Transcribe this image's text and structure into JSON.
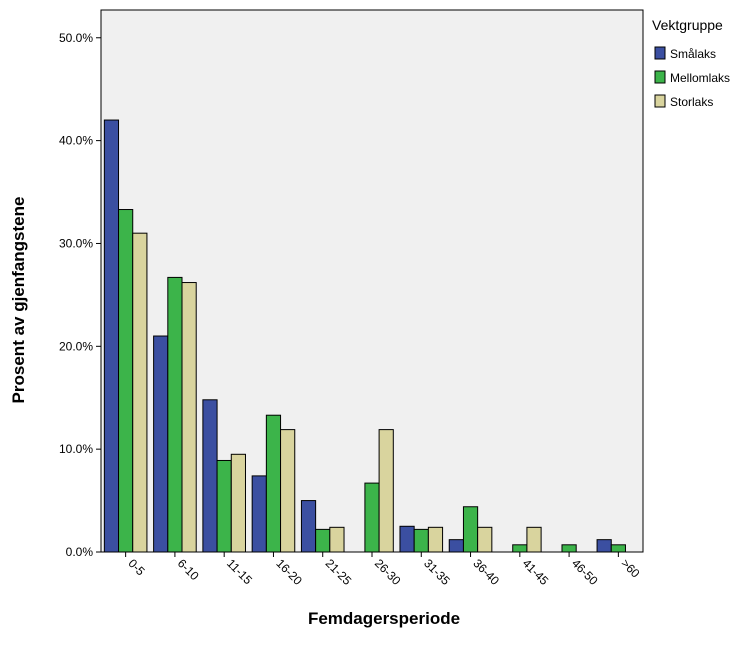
{
  "chart_data": {
    "type": "bar",
    "x_label": "Femdagersperiode",
    "y_label": "Prosent av gjenfangstene",
    "legend_title": "Vektgruppe",
    "legend_position": "right",
    "categories": [
      "0-5",
      "6-10",
      "11-15",
      "16-20",
      "21-25",
      "26-30",
      "31-35",
      "36-40",
      "41-45",
      "46-50",
      ">60"
    ],
    "series": [
      {
        "name": "Smålaks",
        "color": "#3b4fa1",
        "values": [
          42.0,
          21.0,
          14.8,
          7.4,
          5.0,
          0,
          2.5,
          1.2,
          0,
          0,
          1.2
        ]
      },
      {
        "name": "Mellomlaks",
        "color": "#3cb44a",
        "values": [
          33.3,
          26.7,
          8.9,
          13.3,
          2.2,
          6.7,
          2.2,
          4.4,
          0.7,
          0.7,
          0.7
        ]
      },
      {
        "name": "Storlaks",
        "color": "#d9d49e",
        "values": [
          31.0,
          26.2,
          9.5,
          11.9,
          2.4,
          11.9,
          2.4,
          2.4,
          2.4,
          0,
          0
        ]
      }
    ],
    "ylim": [
      0,
      52.7
    ],
    "yticks": [
      {
        "value": 0,
        "label": "0.0%"
      },
      {
        "value": 10,
        "label": "10.0%"
      },
      {
        "value": 20,
        "label": "20.0%"
      },
      {
        "value": 30,
        "label": "30.0%"
      },
      {
        "value": 40,
        "label": "40.0%"
      },
      {
        "value": 50,
        "label": "50.0%"
      }
    ],
    "background": "#f0f0f0",
    "grid": false
  }
}
